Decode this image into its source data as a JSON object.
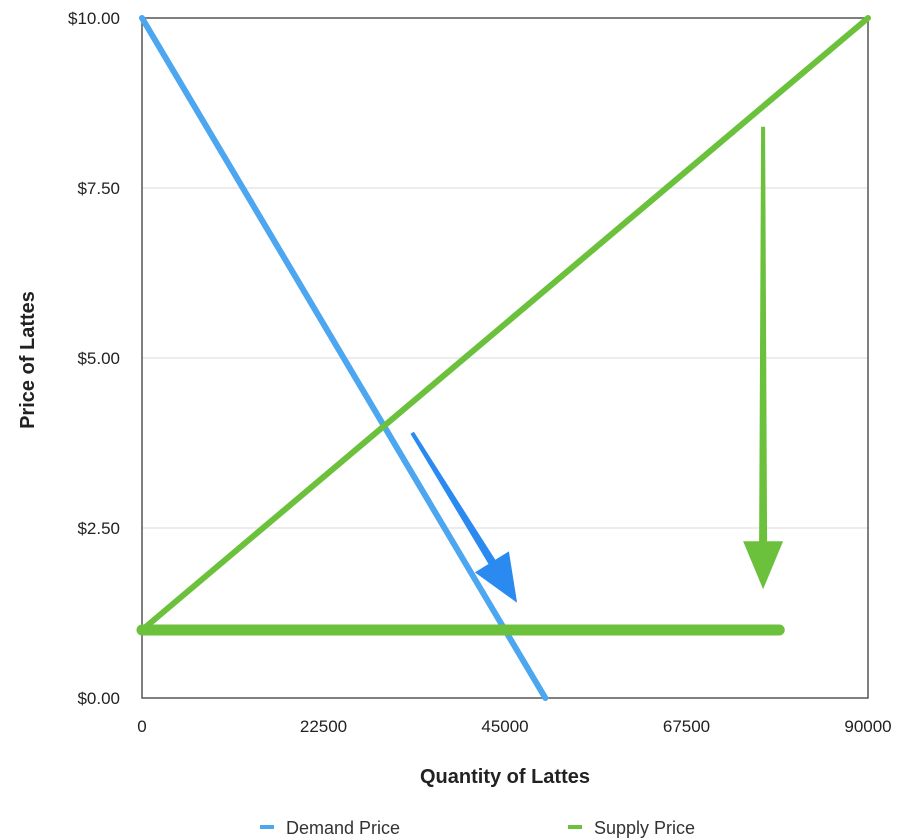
{
  "chart_data": {
    "type": "line",
    "title": "",
    "xlabel": "Quantity of Lattes",
    "ylabel": "Price of Lattes",
    "xlim": [
      0,
      90000
    ],
    "ylim": [
      0,
      10
    ],
    "x_ticks": [
      "0",
      "22500",
      "45000",
      "67500",
      "90000"
    ],
    "x_tick_values": [
      0,
      22500,
      45000,
      67500,
      90000
    ],
    "y_ticks": [
      "$0.00",
      "$2.50",
      "$5.00",
      "$7.50",
      "$10.00"
    ],
    "y_tick_values": [
      0,
      2.5,
      5,
      7.5,
      10
    ],
    "grid": true,
    "legend_position": "bottom",
    "series": [
      {
        "name": "Demand Price",
        "color": "#4da6f0",
        "x": [
          0,
          50000
        ],
        "y": [
          10,
          0
        ]
      },
      {
        "name": "Supply Price",
        "color": "#6cc13c",
        "x": [
          0,
          90000
        ],
        "y": [
          1,
          10
        ]
      }
    ],
    "annotations": [
      {
        "type": "line",
        "color": "#6cc13c",
        "x": [
          0,
          79000
        ],
        "y": [
          1,
          1
        ]
      },
      {
        "type": "arrow",
        "color": "#2a8af0",
        "from": [
          33500,
          3.9
        ],
        "to": [
          46500,
          1.4
        ]
      },
      {
        "type": "arrow",
        "color": "#6cc13c",
        "from": [
          77000,
          8.4
        ],
        "to": [
          77000,
          1.6
        ]
      }
    ]
  }
}
